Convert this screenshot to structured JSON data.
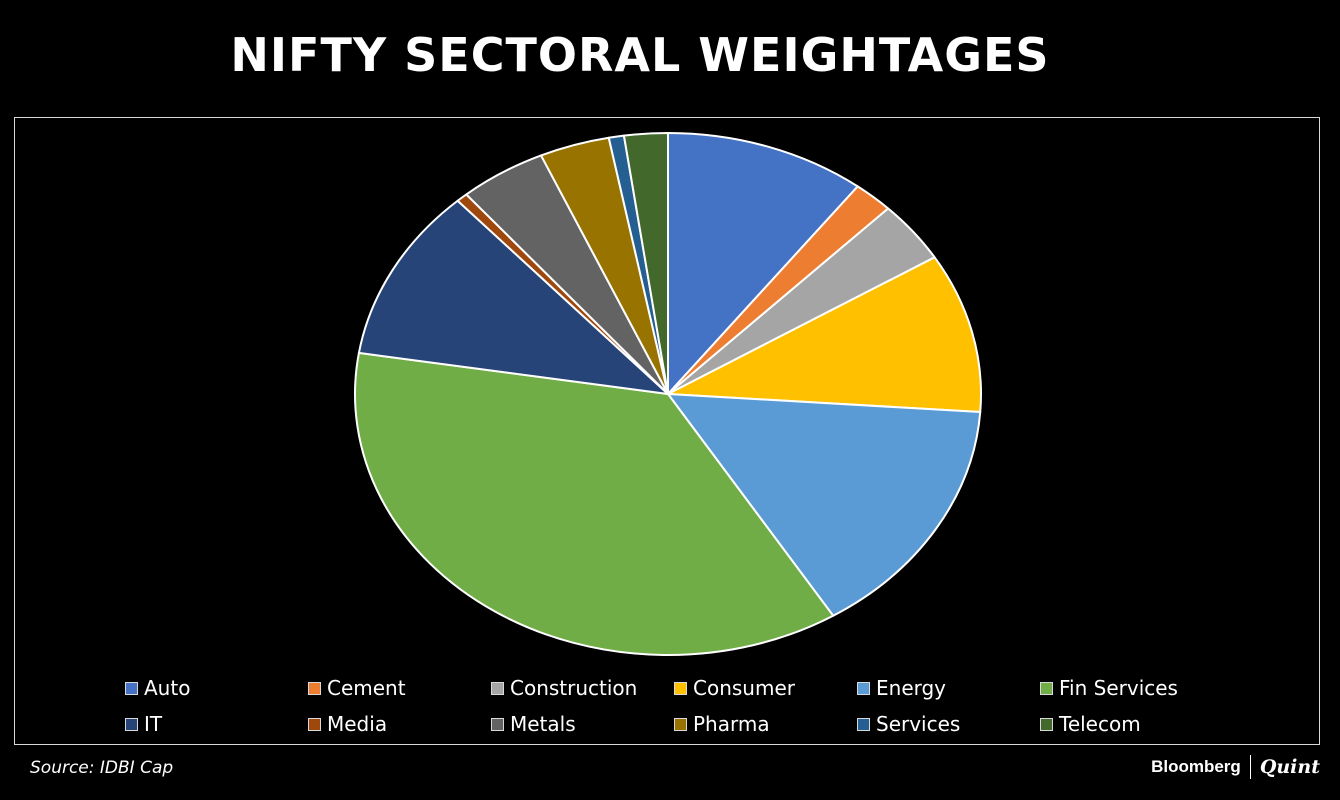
{
  "title": "NIFTY SECTORAL WEIGHTAGES",
  "source": "Source: IDBI Cap",
  "brand": {
    "name": "Bloomberg",
    "sub": "Quint"
  },
  "chart_data": {
    "type": "pie",
    "title": "NIFTY SECTORAL WEIGHTAGES",
    "legend_position": "bottom",
    "start_angle_deg": 0,
    "direction": "clockwise",
    "slice_border_color": "#ffffff",
    "slices": [
      {
        "label": "Auto",
        "value": 10.6,
        "color": "#4472C4"
      },
      {
        "label": "Cement",
        "value": 2.1,
        "color": "#ED7D31"
      },
      {
        "label": "Construction",
        "value": 3.9,
        "color": "#A5A5A5"
      },
      {
        "label": "Consumer",
        "value": 10.1,
        "color": "#FFC000"
      },
      {
        "label": "Energy",
        "value": 15.4,
        "color": "#5B9BD5"
      },
      {
        "label": "Fin Services",
        "value": 37.2,
        "color": "#70AD47"
      },
      {
        "label": "IT",
        "value": 11.0,
        "color": "#264478"
      },
      {
        "label": "Media",
        "value": 0.6,
        "color": "#9E480E"
      },
      {
        "label": "Metals",
        "value": 4.6,
        "color": "#636363"
      },
      {
        "label": "Pharma",
        "value": 3.7,
        "color": "#997300"
      },
      {
        "label": "Services",
        "value": 0.8,
        "color": "#255E91"
      },
      {
        "label": "Telecom",
        "value": 2.3,
        "color": "#43682B"
      }
    ]
  }
}
